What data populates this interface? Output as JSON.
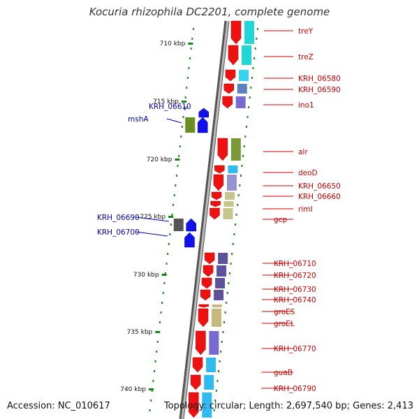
{
  "title": "Kocuria rhizophila DC2201, complete genome",
  "footer": {
    "accession": "Accession: NC_010617",
    "summary": "Topology: circular; Length: 2,697,540 bp; Genes: 2,413"
  },
  "ticks": [
    "710 kbp",
    "715 kbp",
    "720 kbp",
    "725 kbp",
    "730 kbp",
    "735 kbp",
    "740 kbp"
  ],
  "genes_right": [
    "treY",
    "treZ",
    "KRH_06580",
    "KRH_06590",
    "ino1",
    "alr",
    "deoD",
    "KRH_06650",
    "KRH_06660",
    "rimI",
    "gcp",
    "KRH_06710",
    "KRH_06720",
    "KRH_06730",
    "KRH_06740",
    "groES",
    "groEL",
    "KRH_06770",
    "guaB",
    "KRH_06790"
  ],
  "genes_left": [
    "KRH_06610",
    "mshA",
    "KRH_06690",
    "KRH_06700"
  ],
  "colors": {
    "forward_gene": "#ee1111",
    "reverse_gene": "#1111ee",
    "right_label": "#cc0000",
    "left_label": "#0000aa",
    "tick": "#118811",
    "backbone": "#888888"
  }
}
